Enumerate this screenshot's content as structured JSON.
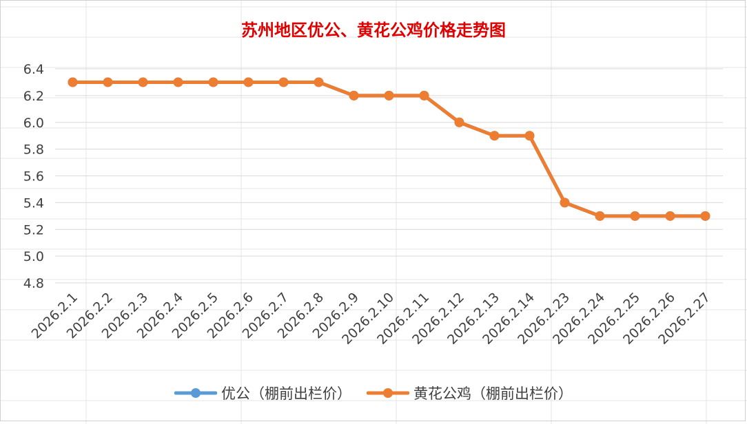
{
  "chart_data": {
    "type": "line",
    "title": "苏州地区优公、黄花公鸡价格走势图",
    "xlabel": "",
    "ylabel": "",
    "categories": [
      "2026.2.1",
      "2026.2.2",
      "2026.2.3",
      "2026.2.4",
      "2026.2.5",
      "2026.2.6",
      "2026.2.7",
      "2026.2.8",
      "2026.2.9",
      "2026.2.10",
      "2026.2.11",
      "2026.2.12",
      "2026.2.13",
      "2026.2.14",
      "2026.2.23",
      "2026.2.24",
      "2026.2.25",
      "2026.2.26",
      "2026.2.27"
    ],
    "ylim": [
      4.8,
      6.4
    ],
    "yticks": [
      "4.8",
      "5.0",
      "5.2",
      "5.4",
      "5.6",
      "5.8",
      "6.0",
      "6.2",
      "6.4"
    ],
    "grid": true,
    "legend_position": "bottom",
    "series": [
      {
        "name": "优公（棚前出栏价）",
        "color": "#5b9bd5",
        "values": [
          6.3,
          6.3,
          6.3,
          6.3,
          6.3,
          6.3,
          6.3,
          6.3,
          6.2,
          6.2,
          6.2,
          6.0,
          5.9,
          5.9,
          5.4,
          5.3,
          5.3,
          5.3,
          5.3
        ]
      },
      {
        "name": "黄花公鸡（棚前出栏价）",
        "color": "#ed7d31",
        "values": [
          6.3,
          6.3,
          6.3,
          6.3,
          6.3,
          6.3,
          6.3,
          6.3,
          6.2,
          6.2,
          6.2,
          6.0,
          5.9,
          5.9,
          5.4,
          5.3,
          5.3,
          5.3,
          5.3
        ]
      }
    ]
  }
}
